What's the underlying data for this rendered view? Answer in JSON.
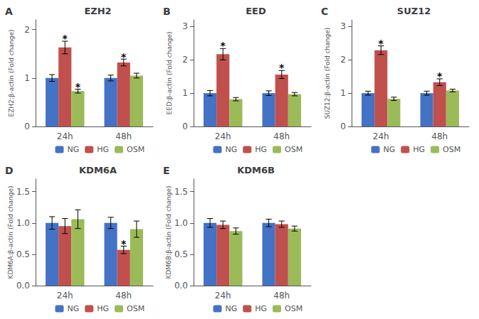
{
  "chart_data": [
    {
      "type": "bar",
      "panel_label": "A",
      "title": "EZH2",
      "ylabel": "EZH2:β-actin (Fold change)",
      "categories": [
        "24h",
        "48h"
      ],
      "series": [
        {
          "name": "NG",
          "color": "#4472C4",
          "values": [
            1.0,
            1.0
          ],
          "errors": [
            0.07,
            0.06
          ]
        },
        {
          "name": "HG",
          "color": "#C0504D",
          "values": [
            1.63,
            1.32
          ],
          "errors": [
            0.13,
            0.07
          ]
        },
        {
          "name": "OSM",
          "color": "#9BBB59",
          "values": [
            0.73,
            1.05
          ],
          "errors": [
            0.04,
            0.05
          ]
        }
      ],
      "annotations": [
        {
          "text": "*",
          "series": "HG",
          "category": "24h",
          "y": 1.77
        },
        {
          "text": "*",
          "series": "OSM",
          "category": "24h",
          "y": 0.78
        },
        {
          "text": "*",
          "series": "HG",
          "category": "48h",
          "y": 1.4
        }
      ],
      "ylim": [
        0,
        2.2
      ],
      "yticks": [
        0,
        1,
        2
      ],
      "grid": false,
      "legend": "bottom"
    },
    {
      "type": "bar",
      "panel_label": "B",
      "title": "EED",
      "ylabel": "EED:β-actin (Fold change)",
      "categories": [
        "24h",
        "48h"
      ],
      "series": [
        {
          "name": "NG",
          "color": "#4472C4",
          "values": [
            1.0,
            1.0
          ],
          "errors": [
            0.08,
            0.07
          ]
        },
        {
          "name": "HG",
          "color": "#C0504D",
          "values": [
            2.17,
            1.56
          ],
          "errors": [
            0.17,
            0.12
          ]
        },
        {
          "name": "OSM",
          "color": "#9BBB59",
          "values": [
            0.82,
            0.97
          ],
          "errors": [
            0.05,
            0.05
          ]
        }
      ],
      "annotations": [
        {
          "text": "*",
          "series": "HG",
          "category": "24h",
          "y": 2.36
        },
        {
          "text": "*",
          "series": "HG",
          "category": "48h",
          "y": 1.7
        }
      ],
      "ylim": [
        0,
        3.2
      ],
      "yticks": [
        0,
        1,
        2,
        3
      ],
      "grid": false,
      "legend": "bottom"
    },
    {
      "type": "bar",
      "panel_label": "C",
      "title": "SUZ12",
      "ylabel": "SUZ12:β-actin (Fold change)",
      "categories": [
        "24h",
        "48h"
      ],
      "series": [
        {
          "name": "NG",
          "color": "#4472C4",
          "values": [
            1.0,
            1.0
          ],
          "errors": [
            0.06,
            0.06
          ]
        },
        {
          "name": "HG",
          "color": "#C0504D",
          "values": [
            2.29,
            1.33
          ],
          "errors": [
            0.13,
            0.1
          ]
        },
        {
          "name": "OSM",
          "color": "#9BBB59",
          "values": [
            0.83,
            1.08
          ],
          "errors": [
            0.05,
            0.04
          ]
        }
      ],
      "annotations": [
        {
          "text": "*",
          "series": "HG",
          "category": "24h",
          "y": 2.44
        },
        {
          "text": "*",
          "series": "HG",
          "category": "48h",
          "y": 1.45
        }
      ],
      "ylim": [
        0,
        3.2
      ],
      "yticks": [
        0,
        1,
        2,
        3
      ],
      "grid": false,
      "legend": "bottom"
    },
    {
      "type": "bar",
      "panel_label": "D",
      "title": "KDM6A",
      "ylabel": "KDM6A:β-actin (Fold change)",
      "categories": [
        "24h",
        "48h"
      ],
      "series": [
        {
          "name": "NG",
          "color": "#4472C4",
          "values": [
            1.0,
            1.0
          ],
          "errors": [
            0.1,
            0.09
          ]
        },
        {
          "name": "HG",
          "color": "#C0504D",
          "values": [
            0.95,
            0.57
          ],
          "errors": [
            0.12,
            0.06
          ]
        },
        {
          "name": "OSM",
          "color": "#9BBB59",
          "values": [
            1.06,
            0.9
          ],
          "errors": [
            0.15,
            0.13
          ]
        }
      ],
      "annotations": [
        {
          "text": "*",
          "series": "HG",
          "category": "48h",
          "y": 0.64
        }
      ],
      "ylim": [
        0,
        1.7
      ],
      "yticks": [
        {
          "value": 0,
          "label": "0.0"
        },
        0.5,
        {
          "value": 1,
          "label": "1.0"
        },
        1.5
      ],
      "grid": false,
      "legend": "bottom"
    },
    {
      "type": "bar",
      "panel_label": "E",
      "title": "KDM6B",
      "ylabel": "KDM6B:β-actin (Fold change)",
      "categories": [
        "24h",
        "48h"
      ],
      "series": [
        {
          "name": "NG",
          "color": "#4472C4",
          "values": [
            1.0,
            1.0
          ],
          "errors": [
            0.07,
            0.06
          ]
        },
        {
          "name": "HG",
          "color": "#C0504D",
          "values": [
            0.97,
            0.98
          ],
          "errors": [
            0.06,
            0.05
          ]
        },
        {
          "name": "OSM",
          "color": "#9BBB59",
          "values": [
            0.87,
            0.91
          ],
          "errors": [
            0.05,
            0.04
          ]
        }
      ],
      "annotations": [],
      "ylim": [
        0,
        1.7
      ],
      "yticks": [
        {
          "value": 0,
          "label": "0.0"
        },
        0.5,
        {
          "value": 1,
          "label": "1.0"
        },
        1.5
      ],
      "grid": false,
      "legend": "bottom"
    }
  ]
}
